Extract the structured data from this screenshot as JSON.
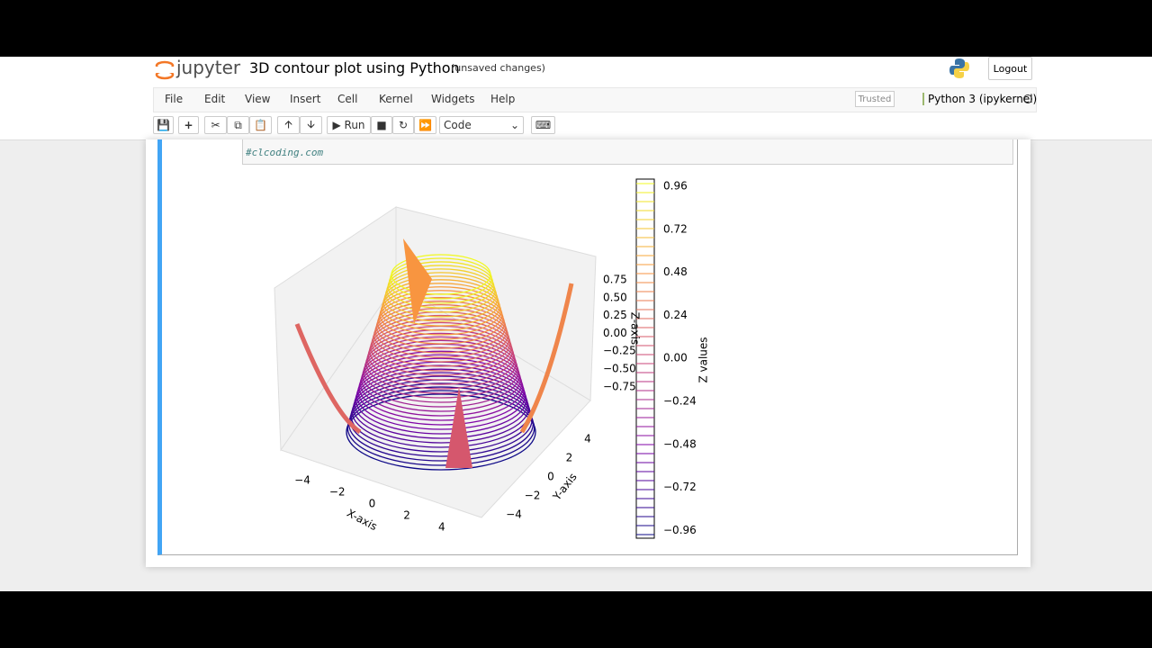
{
  "header": {
    "logo": "jupyter",
    "notebook_name": "3D contour plot using Python",
    "status": "(unsaved changes)",
    "logout": "Logout"
  },
  "menu": {
    "items": [
      "File",
      "Edit",
      "View",
      "Insert",
      "Cell",
      "Kernel",
      "Widgets",
      "Help"
    ],
    "trusted": "Trusted",
    "kernel": "Python 3 (ipykernel)"
  },
  "toolbar": {
    "run": "Run",
    "cell_type": "Code"
  },
  "cell": {
    "code": "#clcoding.com",
    "output": {
      "z_ticks": [
        "0.75",
        "0.50",
        "0.25",
        "0.00",
        "−0.25",
        "−0.50",
        "−0.75"
      ],
      "z_label": "Z-axis",
      "x_ticks": [
        "−4",
        "−2",
        "0",
        "2",
        "4"
      ],
      "x_label": "X-axis",
      "y_ticks": [
        "4",
        "2",
        "0",
        "−2",
        "−4"
      ],
      "y_label": "Y-axis",
      "colorbar_ticks": [
        "0.96",
        "0.72",
        "0.48",
        "0.24",
        "0.00",
        "−0.24",
        "−0.48",
        "−0.72",
        "−0.96"
      ],
      "colorbar_label": "Z values"
    }
  }
}
